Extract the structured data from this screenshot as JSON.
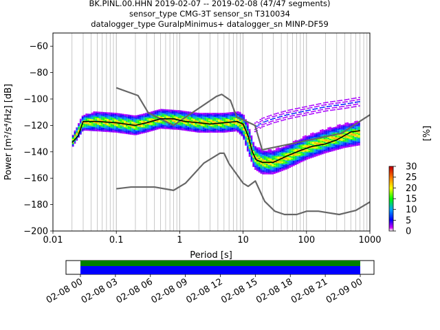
{
  "chart_data": {
    "type": "heatmap",
    "title_lines": [
      "BK.PINL.00.HHN   2019-02-07 -- 2019-02-08  (47/47 segments)",
      "sensor_type CMG-3T sensor_sn T310034",
      "datalogger_type GuralpMinimus+ datalogger_sn MINP-DF59"
    ],
    "xlabel": "Period [s]",
    "ylabel": "Power [m²/s⁴/Hz] [dB]",
    "x_scale": "log",
    "xlim": [
      0.01,
      1000
    ],
    "ylim": [
      -200,
      -50
    ],
    "x_ticks": [
      {
        "value": 0.01,
        "label": "0.01"
      },
      {
        "value": 0.1,
        "label": "0.1"
      },
      {
        "value": 1,
        "label": "1"
      },
      {
        "value": 10,
        "label": "10"
      },
      {
        "value": 100,
        "label": "100"
      },
      {
        "value": 1000,
        "label": "1000"
      }
    ],
    "y_ticks": [
      -60,
      -80,
      -100,
      -120,
      -140,
      -160,
      -180,
      -200
    ],
    "grid": "vertical minor gridlines on log axis",
    "colorbar": {
      "label": "[%]",
      "range": [
        0,
        30
      ],
      "ticks": [
        0,
        5,
        10,
        15,
        20,
        25,
        30
      ],
      "colormap": "pqlx"
    },
    "series": [
      {
        "name": "",
        "role": "NHNM",
        "color": "#666666",
        "x": [
          0.1,
          0.22,
          0.32,
          0.8,
          3.8,
          4.6,
          6.3,
          7.9,
          15.4,
          20,
          354.8,
          1000
        ],
        "y": [
          -91.5,
          -97.4,
          -110.5,
          -120,
          -98,
          -96.5,
          -101,
          -113.5,
          -120,
          -138.5,
          -126,
          -112
        ]
      },
      {
        "name": "",
        "role": "NLNM",
        "color": "#666666",
        "x": [
          0.1,
          0.17,
          0.4,
          0.8,
          1.24,
          2.4,
          4.3,
          5,
          6,
          10,
          12,
          15.6,
          21.9,
          31.6,
          45,
          70,
          101,
          154,
          328,
          600,
          1000
        ],
        "y": [
          -168,
          -166.7,
          -166.7,
          -169.2,
          -163.7,
          -148.6,
          -141.1,
          -141.1,
          -149,
          -163.8,
          -166.2,
          -162.1,
          -177.5,
          -185,
          -187.5,
          -187.5,
          -185,
          -185,
          -187.5,
          -184.4,
          -178
        ]
      },
      {
        "name": "",
        "role": "mode",
        "color": "#000000",
        "x": [
          0.02,
          0.025,
          0.03,
          0.05,
          0.1,
          0.2,
          0.3,
          0.5,
          0.8,
          1.2,
          2,
          3,
          5,
          8,
          10,
          12,
          14,
          16,
          20,
          30,
          50,
          80,
          120,
          200,
          300,
          500,
          700
        ],
        "y": [
          -133,
          -128,
          -117,
          -117,
          -118,
          -120,
          -118,
          -115,
          -115,
          -117,
          -118,
          -119,
          -118,
          -117,
          -119,
          -128,
          -140,
          -146,
          -148,
          -148,
          -143,
          -139,
          -136,
          -134,
          -131,
          -125,
          -124
        ]
      }
    ],
    "density_band": {
      "description": "probabilistic PSD histogram of 47 segments",
      "x": [
        0.02,
        0.03,
        0.05,
        0.1,
        0.2,
        0.3,
        0.5,
        1,
        2,
        5,
        8,
        10,
        12,
        15,
        20,
        30,
        50,
        100,
        200,
        400,
        700
      ],
      "y_center": [
        -133,
        -118,
        -117,
        -118,
        -120,
        -118,
        -115,
        -116,
        -118,
        -118,
        -117,
        -120,
        -130,
        -144,
        -148,
        -148,
        -144,
        -137,
        -132,
        -128,
        -126
      ],
      "y_spread": [
        3,
        4,
        5,
        5,
        5,
        5,
        5,
        5,
        5,
        5,
        5,
        6,
        7,
        6,
        6,
        6,
        6,
        6,
        6,
        6,
        6
      ]
    },
    "outlier_band": {
      "description": "sparse high-power tail",
      "x": [
        15,
        20,
        30,
        50,
        100,
        200,
        400,
        700
      ],
      "y": [
        -122,
        -118,
        -115,
        -112,
        -109,
        -106,
        -104,
        -102
      ]
    }
  },
  "timeline": {
    "tick_labels": [
      "02-08 00",
      "02-08 03",
      "02-08 06",
      "02-08 09",
      "02-08 12",
      "02-08 15",
      "02-08 18",
      "02-08 21",
      "02-09 00"
    ],
    "green_color": "#008000",
    "blue_color": "#0000ff"
  }
}
